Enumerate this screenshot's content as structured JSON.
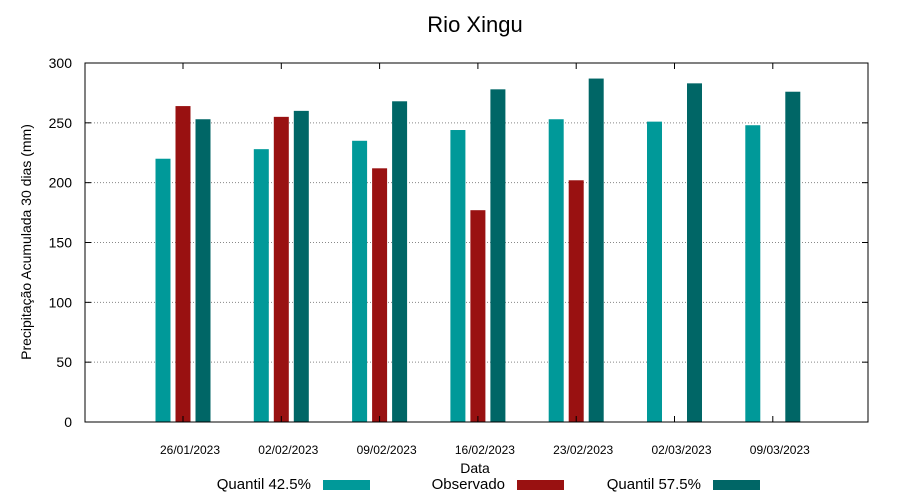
{
  "chart_data": {
    "type": "bar",
    "title": "Rio Xingu",
    "xlabel": "Data",
    "ylabel": "Precipitação Acumulada 30 dias (mm)",
    "ylim": [
      0,
      300
    ],
    "yticks": [
      0,
      50,
      100,
      150,
      200,
      250,
      300
    ],
    "grid": true,
    "legend_position": "bottom",
    "categories": [
      "26/01/2023",
      "02/02/2023",
      "09/02/2023",
      "16/02/2023",
      "23/02/2023",
      "02/03/2023",
      "09/03/2023"
    ],
    "series": [
      {
        "name": "Quantil 42.5%",
        "color": "#009999",
        "values": [
          220,
          228,
          235,
          244,
          253,
          251,
          248
        ]
      },
      {
        "name": "Observado",
        "color": "#991111",
        "values": [
          264,
          255,
          212,
          177,
          202,
          null,
          null
        ]
      },
      {
        "name": "Quantil 57.5%",
        "color": "#006666",
        "values": [
          253,
          260,
          268,
          278,
          287,
          283,
          276
        ]
      }
    ]
  }
}
